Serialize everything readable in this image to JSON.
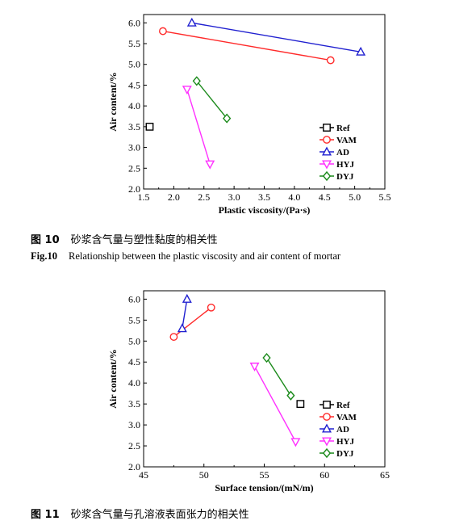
{
  "chart_data": [
    {
      "type": "scatter",
      "xlabel": "Plastic viscosity/(Pa·s)",
      "ylabel": "Air content/%",
      "xlim": [
        1.5,
        5.5
      ],
      "ylim": [
        2.0,
        6.2
      ],
      "xticks": [
        "1.5",
        "2.0",
        "2.5",
        "3.0",
        "3.5",
        "4.0",
        "4.5",
        "5.0",
        "5.5"
      ],
      "yticks": [
        "2.0",
        "2.5",
        "3.0",
        "3.5",
        "4.0",
        "4.5",
        "5.0",
        "5.5",
        "6.0"
      ],
      "legend_position": "bottom-right",
      "series": [
        {
          "name": "Ref",
          "marker": "square",
          "color": "#000000",
          "points": [
            [
              1.6,
              3.5
            ]
          ]
        },
        {
          "name": "VAM",
          "marker": "circle",
          "color": "#ff2a2a",
          "points": [
            [
              1.82,
              5.8
            ],
            [
              4.6,
              5.1
            ]
          ]
        },
        {
          "name": "AD",
          "marker": "triangle-up",
          "color": "#2020d0",
          "points": [
            [
              2.3,
              6.0
            ],
            [
              5.1,
              5.3
            ]
          ]
        },
        {
          "name": "HYJ",
          "marker": "triangle-down",
          "color": "#ff30ff",
          "points": [
            [
              2.22,
              4.4
            ],
            [
              2.6,
              2.6
            ]
          ]
        },
        {
          "name": "DYJ",
          "marker": "diamond",
          "color": "#1a8a1a",
          "points": [
            [
              2.38,
              4.6
            ],
            [
              2.88,
              3.7
            ]
          ]
        }
      ]
    },
    {
      "type": "scatter",
      "xlabel": "Surface tension/(mN/m)",
      "ylabel": "Air content/%",
      "xlim": [
        45,
        65
      ],
      "ylim": [
        2.0,
        6.2
      ],
      "xticks": [
        "45",
        "50",
        "55",
        "60",
        "65"
      ],
      "yticks": [
        "2.0",
        "2.5",
        "3.0",
        "3.5",
        "4.0",
        "4.5",
        "5.0",
        "5.5",
        "6.0"
      ],
      "legend_position": "bottom-right",
      "series": [
        {
          "name": "Ref",
          "marker": "square",
          "color": "#000000",
          "points": [
            [
              58.0,
              3.5
            ]
          ]
        },
        {
          "name": "VAM",
          "marker": "circle",
          "color": "#ff2a2a",
          "points": [
            [
              50.6,
              5.8
            ],
            [
              47.5,
              5.1
            ]
          ]
        },
        {
          "name": "AD",
          "marker": "triangle-up",
          "color": "#2020d0",
          "points": [
            [
              48.6,
              6.0
            ],
            [
              48.2,
              5.3
            ]
          ]
        },
        {
          "name": "HYJ",
          "marker": "triangle-down",
          "color": "#ff30ff",
          "points": [
            [
              54.2,
              4.4
            ],
            [
              57.6,
              2.6
            ]
          ]
        },
        {
          "name": "DYJ",
          "marker": "diamond",
          "color": "#1a8a1a",
          "points": [
            [
              55.2,
              4.6
            ],
            [
              57.2,
              3.7
            ]
          ]
        }
      ]
    }
  ],
  "captions": {
    "fig10_zh_num": "图 10",
    "fig10_zh_text": "砂浆含气量与塑性黏度的相关性",
    "fig10_en_num": "Fig.10",
    "fig10_en_text": "Relationship between the plastic viscosity and air content of mortar",
    "fig11_zh_num": "图 11",
    "fig11_zh_text": "砂浆含气量与孔溶液表面张力的相关性"
  }
}
